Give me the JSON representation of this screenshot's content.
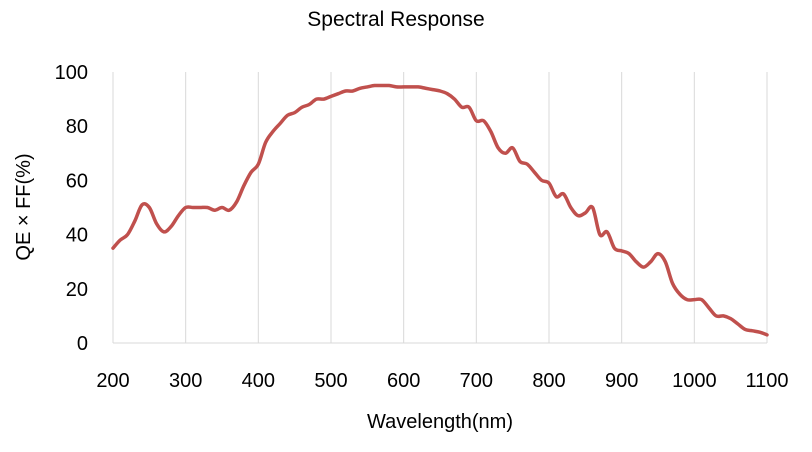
{
  "chart_data": {
    "type": "line",
    "title": "Spectral Response",
    "xlabel": "Wavelength(nm)",
    "ylabel": "QE × FF(%)",
    "xlim": [
      200,
      1100
    ],
    "ylim": [
      0,
      100
    ],
    "xticks": [
      200,
      300,
      400,
      500,
      600,
      700,
      800,
      900,
      1000,
      1100
    ],
    "yticks": [
      0,
      20,
      40,
      60,
      80,
      100
    ],
    "grid": "vertical",
    "legend": "none",
    "series_color": "#c0504d",
    "series": [
      {
        "x": [
          200,
          210,
          220,
          230,
          240,
          250,
          260,
          270,
          280,
          290,
          300,
          310,
          320,
          330,
          340,
          350,
          360,
          370,
          380,
          390,
          400,
          410,
          420,
          430,
          440,
          450,
          460,
          470,
          480,
          490,
          500,
          510,
          520,
          530,
          540,
          550,
          560,
          570,
          580,
          590,
          600,
          610,
          620,
          630,
          640,
          650,
          660,
          670,
          680,
          690,
          700,
          710,
          720,
          730,
          740,
          750,
          760,
          770,
          780,
          790,
          800,
          810,
          820,
          830,
          840,
          850,
          860,
          870,
          880,
          890,
          900,
          910,
          920,
          930,
          940,
          950,
          960,
          970,
          980,
          990,
          1000,
          1010,
          1020,
          1030,
          1040,
          1050,
          1060,
          1070,
          1080,
          1090,
          1100
        ],
        "values": [
          35,
          38,
          40,
          45,
          51,
          50,
          44,
          41,
          43,
          47,
          50,
          50,
          50,
          50,
          49,
          50,
          49,
          52,
          58,
          63,
          66,
          74,
          78,
          81,
          84,
          85,
          87,
          88,
          90,
          90,
          91,
          92,
          93,
          93,
          94,
          94.5,
          95,
          95,
          95,
          94.5,
          94.5,
          94.5,
          94.5,
          94,
          93.5,
          93,
          92,
          90,
          87,
          87,
          82,
          82,
          78,
          72,
          70,
          72,
          67,
          66,
          63,
          60,
          59,
          54,
          55,
          50,
          47,
          48,
          50,
          40,
          41,
          35,
          34,
          33,
          30,
          28,
          30,
          33,
          30,
          22,
          18,
          16,
          16,
          16,
          13,
          10,
          10,
          9,
          7,
          5,
          4.5,
          4,
          3
        ]
      }
    ]
  }
}
